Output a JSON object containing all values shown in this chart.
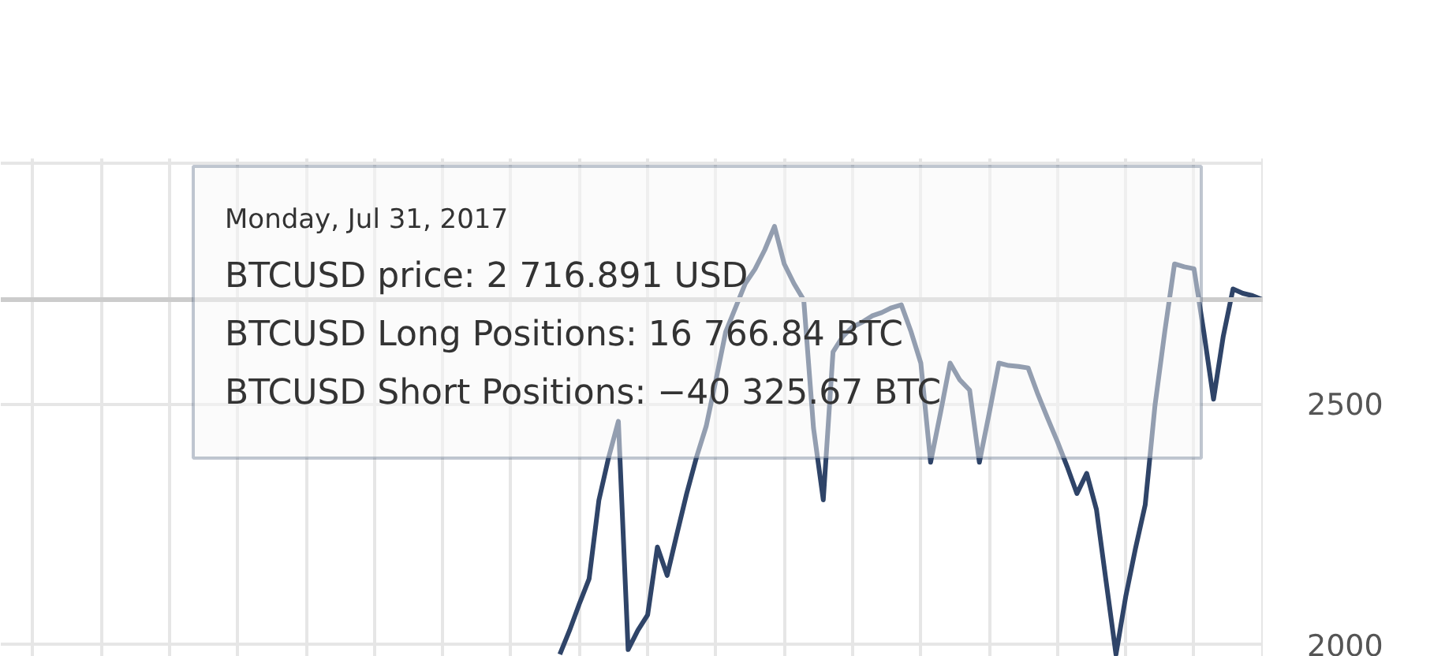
{
  "chart_data": {
    "type": "line",
    "categories": [
      null,
      null,
      null,
      null,
      null,
      null,
      null,
      null,
      null,
      null,
      null,
      null,
      null,
      null,
      null,
      null,
      null,
      null,
      null,
      null,
      null,
      null,
      null,
      null,
      null,
      null,
      null,
      null,
      null,
      null,
      null,
      null,
      null,
      null,
      null,
      null,
      null,
      null,
      null,
      null,
      null,
      null,
      null,
      null,
      null,
      null,
      null,
      null,
      null,
      null,
      null,
      null,
      null,
      null,
      null,
      null,
      null,
      null,
      null,
      null,
      null,
      null,
      null,
      null,
      null,
      null,
      null,
      null,
      null,
      null,
      null,
      null,
      null,
      null,
      null,
      null,
      null,
      null,
      null,
      null,
      null,
      null,
      null,
      null,
      null,
      null,
      null,
      null,
      null,
      null,
      null,
      null,
      null,
      null,
      null,
      null,
      null,
      null,
      null,
      null,
      null,
      null,
      null,
      null,
      null,
      null,
      null,
      null,
      null,
      null,
      null,
      null,
      null,
      null,
      null,
      null,
      null,
      null,
      null,
      null,
      null,
      null,
      null,
      null,
      null,
      null,
      null,
      null,
      null,
      null
    ],
    "series": [
      {
        "color": "#2f4468",
        "values": [
          null,
          null,
          null,
          null,
          null,
          null,
          null,
          null,
          null,
          null,
          null,
          null,
          null,
          null,
          null,
          null,
          null,
          null,
          null,
          null,
          null,
          null,
          null,
          null,
          null,
          null,
          null,
          null,
          null,
          null,
          null,
          null,
          null,
          null,
          null,
          null,
          null,
          null,
          null,
          null,
          null,
          null,
          null,
          null,
          null,
          null,
          null,
          null,
          null,
          null,
          null,
          null,
          null,
          null,
          null,
          null,
          null,
          1980,
          2030,
          2085,
          2137,
          2300,
          2389,
          2464,
          1990,
          2030,
          2062,
          2203,
          2144,
          2230,
          2314,
          2389,
          2454,
          2550,
          2650,
          2700,
          2750,
          2780,
          2820,
          2869,
          2791,
          2750,
          2716,
          2450,
          2301,
          2608,
          2640,
          2660,
          2670,
          2683,
          2690,
          2700,
          2706,
          2650,
          2585,
          2379,
          2480,
          2585,
          2550,
          2529,
          2379,
          2480,
          2585,
          2580,
          2578,
          2575,
          2520,
          2470,
          2422,
          2370,
          2314,
          2356,
          2281,
          2130,
          1980,
          2100,
          2200,
          2291,
          2497,
          2650,
          2791,
          2785,
          2781,
          2650,
          2510,
          2641,
          2739,
          2730,
          2725,
          2717
        ]
      }
    ],
    "ylim": [
      1975,
      3010
    ],
    "yticks": [
      2000,
      2500,
      {
        "value": 3000,
        "label": null
      }
    ],
    "tick_labels": "y",
    "grid": true,
    "ref_lines": [
      {
        "axis": "y",
        "value": 2717,
        "label": null,
        "color": "#cccccc"
      }
    ],
    "annotations": [
      "Monday, Jul 31, 2017",
      "BTCUSD price: 2 716.891 USD",
      "BTCUSD Long Positions: 16 766.84 BTC",
      "BTCUSD Short Positions: −40 325.67 BTC"
    ]
  }
}
